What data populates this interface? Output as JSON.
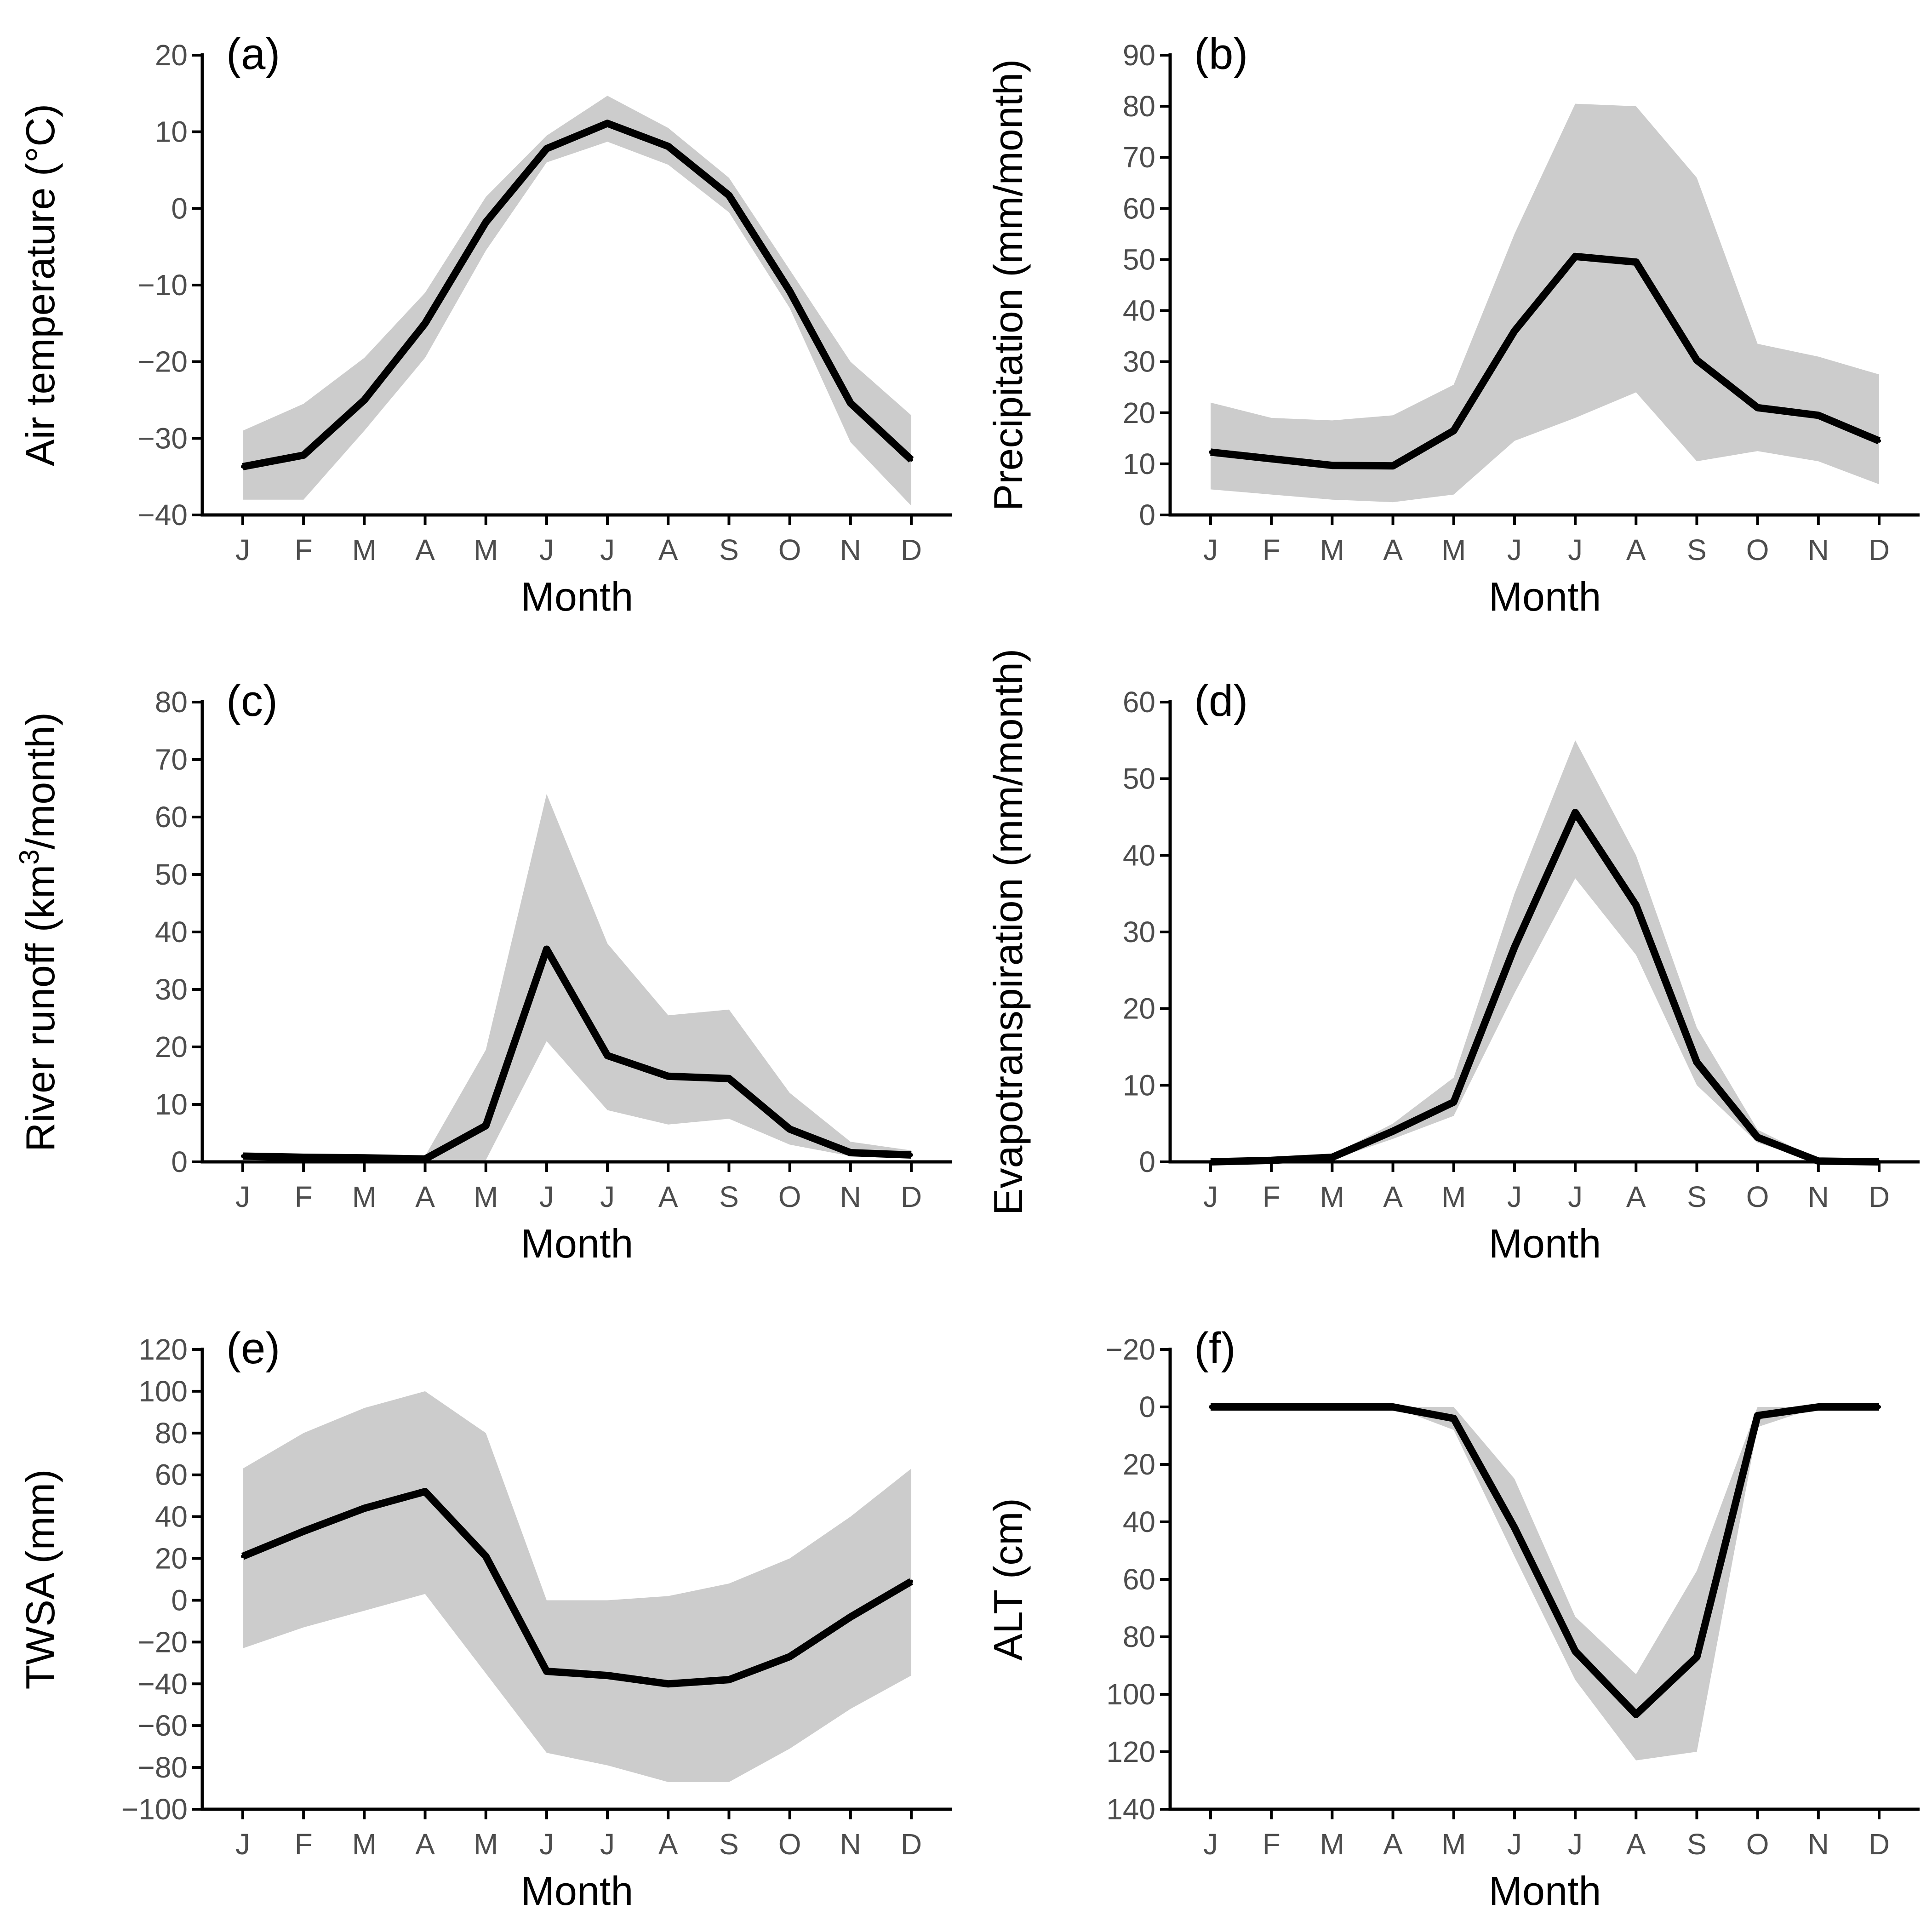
{
  "chart_data": [
    {
      "type": "area",
      "tag": "(a)",
      "xlabel": "Month",
      "ylabel": "Air temperature (°C)",
      "categories": [
        "J",
        "F",
        "M",
        "A",
        "M",
        "J",
        "J",
        "A",
        "S",
        "O",
        "N",
        "D"
      ],
      "ylim": [
        -40,
        20
      ],
      "yticks": [
        -40,
        -30,
        -20,
        -10,
        0,
        10,
        20
      ],
      "ytick_labels": [
        "−40",
        "−30",
        "−20",
        "−10",
        "0",
        "10",
        "20"
      ],
      "y_reversed": false,
      "series": [
        {
          "values": [
            -33.7,
            -32.2,
            -25,
            -15,
            -1.8,
            7.8,
            11.1,
            8.1,
            1.7,
            -10.8,
            -25.4,
            -32.8
          ],
          "lower": [
            -38,
            -38,
            -29,
            -19.5,
            -5.5,
            6,
            8.7,
            5.7,
            -0.5,
            -13,
            -30.5,
            -38.8
          ],
          "upper": [
            -29,
            -25.5,
            -19.5,
            -11,
            1.5,
            9.5,
            14.7,
            10.5,
            4,
            -8,
            -20,
            -27
          ]
        }
      ]
    },
    {
      "type": "area",
      "tag": "(b)",
      "xlabel": "Month",
      "ylabel": "Precipitation (mm/month)",
      "categories": [
        "J",
        "F",
        "M",
        "A",
        "M",
        "J",
        "J",
        "A",
        "S",
        "O",
        "N",
        "D"
      ],
      "ylim": [
        0,
        90
      ],
      "yticks": [
        0,
        10,
        20,
        30,
        40,
        50,
        60,
        70,
        80,
        90
      ],
      "ytick_labels": [
        "0",
        "10",
        "20",
        "30",
        "40",
        "50",
        "60",
        "70",
        "80",
        "90"
      ],
      "y_reversed": false,
      "series": [
        {
          "values": [
            12.3,
            11,
            9.7,
            9.6,
            16.5,
            36,
            50.6,
            49.5,
            30.3,
            21,
            19.5,
            14.5
          ],
          "lower": [
            5,
            4,
            3,
            2.5,
            4,
            14.5,
            19,
            24,
            10.5,
            12.5,
            10.5,
            6
          ],
          "upper": [
            22,
            19,
            18.5,
            19.5,
            25.5,
            55,
            80.5,
            80,
            66,
            33.5,
            31,
            27.5
          ]
        }
      ]
    },
    {
      "type": "area",
      "tag": "(c)",
      "xlabel": "Month",
      "ylabel": "River runoff (km",
      "ylabel_sup": "3",
      "ylabel_tail": "/month)",
      "categories": [
        "J",
        "F",
        "M",
        "A",
        "M",
        "J",
        "J",
        "A",
        "S",
        "O",
        "N",
        "D"
      ],
      "ylim": [
        0,
        80
      ],
      "yticks": [
        0,
        10,
        20,
        30,
        40,
        50,
        60,
        70,
        80
      ],
      "ytick_labels": [
        "0",
        "10",
        "20",
        "30",
        "40",
        "50",
        "60",
        "70",
        "80"
      ],
      "y_reversed": false,
      "series": [
        {
          "values": [
            1,
            0.8,
            0.7,
            0.5,
            6.3,
            37,
            18.5,
            14.9,
            14.5,
            5.7,
            1.6,
            1.2
          ],
          "lower": [
            0.5,
            0.4,
            0.4,
            0.2,
            0.3,
            21,
            9,
            6.5,
            7.5,
            3,
            1,
            0.8
          ],
          "upper": [
            1.5,
            1.2,
            1.1,
            1,
            19.5,
            64,
            38,
            25.5,
            26.5,
            12,
            3.5,
            2
          ]
        }
      ]
    },
    {
      "type": "area",
      "tag": "(d)",
      "xlabel": "Month",
      "ylabel": "Evapotranspiration (mm/month)",
      "categories": [
        "J",
        "F",
        "M",
        "A",
        "M",
        "J",
        "J",
        "A",
        "S",
        "O",
        "N",
        "D"
      ],
      "ylim": [
        0,
        60
      ],
      "yticks": [
        0,
        10,
        20,
        30,
        40,
        50,
        60
      ],
      "ytick_labels": [
        "0",
        "10",
        "20",
        "30",
        "40",
        "50",
        "60"
      ],
      "y_reversed": false,
      "series": [
        {
          "values": [
            0,
            0.2,
            0.6,
            4,
            7.8,
            28,
            45.6,
            33.5,
            13,
            3.2,
            0.1,
            0
          ],
          "lower": [
            0,
            0.1,
            0.3,
            3,
            6,
            22,
            37,
            27,
            10,
            2.5,
            0,
            0
          ],
          "upper": [
            0.1,
            0.3,
            0.9,
            5,
            11,
            35,
            55,
            40,
            17.5,
            4.2,
            0.3,
            0.2
          ]
        }
      ]
    },
    {
      "type": "area",
      "tag": "(e)",
      "xlabel": "Month",
      "ylabel": "TWSA (mm)",
      "categories": [
        "J",
        "F",
        "M",
        "A",
        "M",
        "J",
        "J",
        "A",
        "S",
        "O",
        "N",
        "D"
      ],
      "ylim": [
        -100,
        120
      ],
      "yticks": [
        -100,
        -80,
        -60,
        -40,
        -20,
        0,
        20,
        40,
        60,
        80,
        100,
        120
      ],
      "ytick_labels": [
        "−100",
        "−80",
        "−60",
        "−40",
        "−20",
        "0",
        "20",
        "40",
        "60",
        "80",
        "100",
        "120"
      ],
      "y_reversed": false,
      "series": [
        {
          "values": [
            21,
            33,
            44,
            52,
            21,
            -34,
            -36,
            -40,
            -38,
            -27,
            -8,
            9
          ],
          "lower": [
            -23,
            -13,
            -5,
            3,
            -35,
            -73,
            -79,
            -87,
            -87,
            -71,
            -52,
            -36
          ],
          "upper": [
            63,
            80,
            92,
            100,
            80,
            0,
            0,
            2,
            8,
            20,
            40,
            63
          ]
        }
      ]
    },
    {
      "type": "area",
      "tag": "(f)",
      "xlabel": "Month",
      "ylabel": "ALT (cm)",
      "categories": [
        "J",
        "F",
        "M",
        "A",
        "M",
        "J",
        "J",
        "A",
        "S",
        "O",
        "N",
        "D"
      ],
      "ylim": [
        -20,
        140
      ],
      "yticks": [
        -20,
        0,
        20,
        40,
        60,
        80,
        100,
        120,
        140
      ],
      "ytick_labels": [
        "−20",
        "0",
        "20",
        "40",
        "60",
        "80",
        "100",
        "120",
        "140"
      ],
      "y_reversed": true,
      "series": [
        {
          "values": [
            0,
            0,
            0,
            0,
            4,
            42,
            85,
            107,
            87,
            3,
            0,
            0
          ],
          "lower": [
            0,
            0,
            0,
            0,
            0,
            25,
            73,
            93,
            57,
            0,
            0,
            0
          ],
          "upper": [
            0,
            0,
            0,
            0,
            8,
            52,
            95,
            123,
            120,
            7,
            0,
            0
          ]
        }
      ]
    }
  ]
}
